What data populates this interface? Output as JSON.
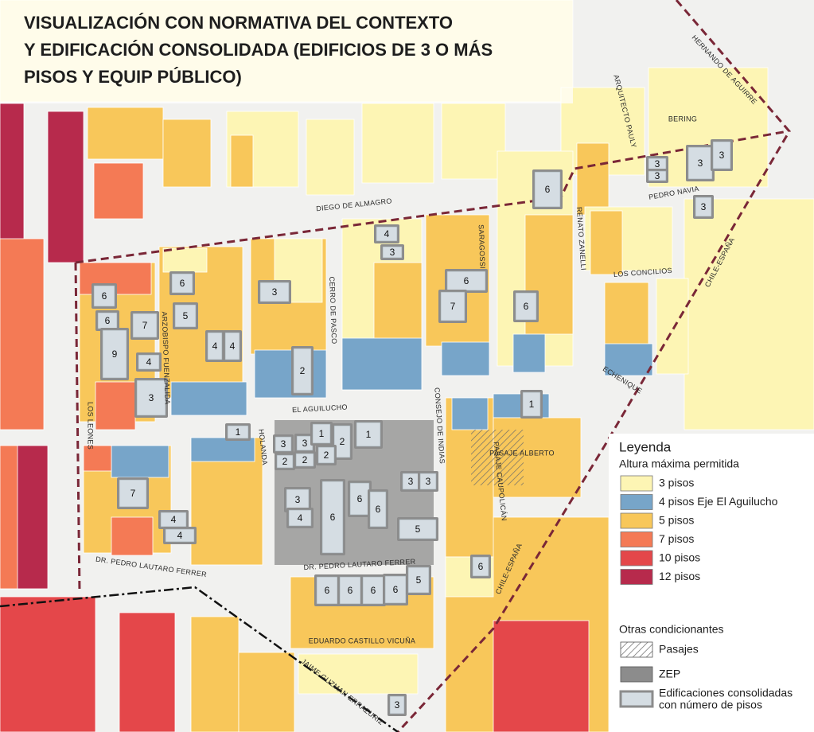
{
  "title": [
    "VISUALIZACIÓN CON NORMATIVA DEL CONTEXTO",
    "Y EDIFICACIÓN CONSOLIDADA (EDIFICIOS DE 3 O MÁS",
    "PISOS Y EQUIP PÚBLICO)"
  ],
  "streets": [
    "DIEGO DE ALMAGRO",
    "HERNANDO DE AGUIRRE",
    "ARQUITECTO PAULY",
    "BERING",
    "PEDRO NAVIA",
    "RENATO ZANELLI",
    "SARAGOSSI",
    "LOS CONCILIOS",
    "CHILE-ESPAÑA",
    "CERRO DE PASCO",
    "ARZOBISPO FUENZALIDA",
    "ECHENIQUE",
    "EL AGUILUCHO",
    "CONSEJO DE INDIAS",
    "LOS LEONES",
    "HOLANDA",
    "PASAJE ALBERTO",
    "PASAJE CAUPOLICÁN",
    "DR. PEDRO LAUTARO FERRER",
    "DR. PEDRO LAUTARO FERRER",
    "CHILE-ESPAÑA",
    "EDUARDO CASTILLO VICUÑA",
    "JAIME GUZMAN ERRAZURIZ"
  ],
  "buildings": [
    3,
    3,
    3,
    3,
    3,
    6,
    4,
    3,
    6,
    6,
    5,
    6,
    7,
    9,
    4,
    3,
    4,
    4,
    3,
    2,
    6,
    7,
    6,
    1,
    1,
    3,
    3,
    1,
    2,
    1,
    2,
    2,
    2,
    3,
    3,
    7,
    4,
    4,
    3,
    4,
    6,
    6,
    6,
    5,
    6,
    6,
    6,
    6,
    6,
    5,
    3
  ],
  "legend": {
    "title": "Leyenda",
    "heights_title": "Altura máxima permitida",
    "heights": [
      {
        "label": "3 pisos",
        "color": "#fdf5b4"
      },
      {
        "label": "4 pisos Eje El Aguilucho",
        "color": "#77a5c9"
      },
      {
        "label": "5 pisos",
        "color": "#f8c75a"
      },
      {
        "label": "7 pisos",
        "color": "#f47a55"
      },
      {
        "label": "10 pisos",
        "color": "#e4474a"
      },
      {
        "label": "12 pisos",
        "color": "#b72a4c"
      }
    ],
    "others_title": "Otras condicionantes",
    "others": [
      {
        "label": "Pasajes",
        "color": "#6a6a6a"
      },
      {
        "label": "ZEP",
        "color": "#8c8c8c"
      },
      {
        "label": [
          "Edificaciones consolidadas",
          "con número de pisos"
        ],
        "color": "#d5dde3"
      }
    ]
  }
}
